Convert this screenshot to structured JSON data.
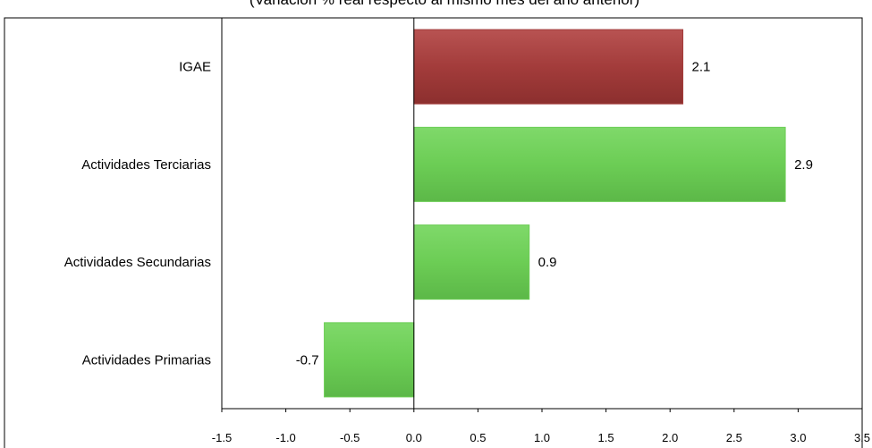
{
  "subtitle": "(Variación % real respecto al mismo mes del año anterior)",
  "chart_data": {
    "type": "bar",
    "orientation": "horizontal",
    "categories": [
      "IGAE",
      "Actividades Terciarias",
      "Actividades Secundarias",
      "Actividades  Primarias"
    ],
    "values": [
      2.1,
      2.9,
      0.9,
      -0.7
    ],
    "data_labels": [
      "2.1",
      "2.9",
      "0.9",
      "-0.7"
    ],
    "xlim": [
      -1.5,
      3.5
    ],
    "xticks": [
      "-1.5",
      "-1.0",
      "-0.5",
      "0.0",
      "0.5",
      "1.0",
      "1.5",
      "2.0",
      "2.5",
      "3.0",
      "3.5"
    ],
    "bar_colors": [
      "#a33c3b",
      "#6ccd55",
      "#6ccd55",
      "#6ccd55"
    ],
    "grid": false,
    "legend": "none"
  }
}
